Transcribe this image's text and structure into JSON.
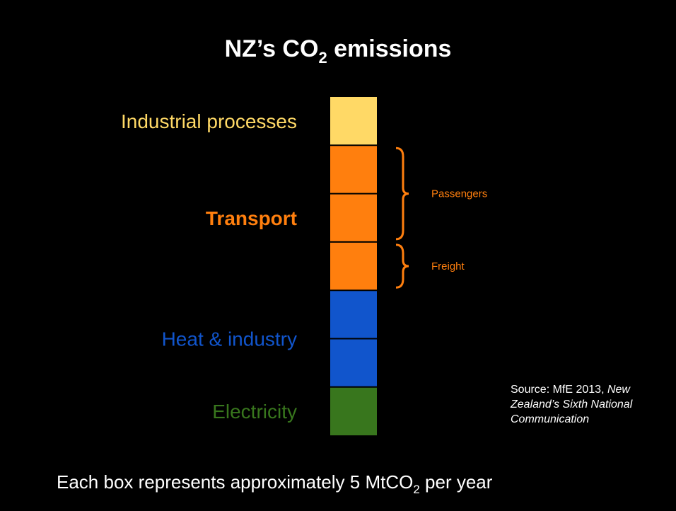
{
  "chart_data": {
    "type": "unit-stack",
    "title": {
      "main": "NZ’s CO",
      "sub": "2",
      "rest": " emissions"
    },
    "sectors": [
      {
        "name": "Industrial processes",
        "color": "#ffd966",
        "boxes": 1
      },
      {
        "name": "Transport",
        "color": "#ff7f0e",
        "bold": true,
        "parts": [
          {
            "name": "Passengers",
            "boxes": 2
          },
          {
            "name": "Freight",
            "boxes": 1
          }
        ]
      },
      {
        "name": "Heat & industry",
        "color": "#1155cc",
        "boxes": 2
      },
      {
        "name": "Electricity",
        "color": "#38761d",
        "boxes": 1
      }
    ],
    "source": {
      "plain": "Source: MfE 2013, ",
      "italic": [
        "New",
        "Zealand’s Sixth National",
        "Communication"
      ]
    },
    "note": {
      "main": "Each box represents approximately 5 MtCO",
      "sub": "2",
      "rest": " per year"
    }
  }
}
